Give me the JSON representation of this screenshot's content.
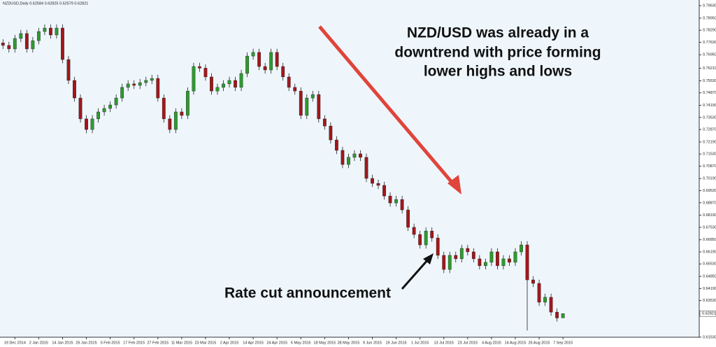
{
  "chart_data": {
    "type": "candlestick",
    "title": "NZDUSD,Daily  0.62584 0.62825 0.62579 0.62821",
    "annotation_top": [
      "NZD/USD was already in a",
      "downtrend with price forming",
      "lower highs and lows"
    ],
    "annotation_bottom": "Rate cut announcement",
    "categories": [
      null,
      null,
      "19 Dec 2014",
      null,
      null,
      null,
      "2 Jan 2015",
      null,
      null,
      null,
      "14 Jan 2015",
      null,
      null,
      null,
      "26 Jan 2015",
      null,
      null,
      null,
      "5 Feb 2015",
      null,
      null,
      null,
      "17 Feb 2015",
      null,
      null,
      null,
      "27 Feb 2015",
      null,
      null,
      null,
      "11 Mar 2015",
      null,
      null,
      null,
      "23 Mar 2015",
      null,
      null,
      null,
      "2 Apr 2015",
      null,
      null,
      null,
      "14 Apr 2015",
      null,
      null,
      null,
      "24 Apr 2015",
      null,
      null,
      null,
      "6 May 2015",
      null,
      null,
      null,
      "18 May 2015",
      null,
      null,
      null,
      "28 May 2015",
      null,
      null,
      null,
      "9 Jun 2015",
      null,
      null,
      null,
      "19 Jun 2015",
      null,
      null,
      null,
      "1 Jul 2015",
      null,
      null,
      null,
      "13 Jul 2015",
      null,
      null,
      null,
      "23 Jul 2015",
      null,
      null,
      null,
      "4 Aug 2015",
      null,
      null,
      null,
      "14 Aug 2015",
      null,
      null,
      null,
      "26 Aug 2015",
      null,
      null,
      null,
      "7 Sep 2015"
    ],
    "open": [
      0.776,
      0.7746,
      0.7727,
      0.7784,
      0.7811,
      0.7727,
      0.7772,
      0.7822,
      0.7841,
      0.7803,
      0.7841,
      0.7669,
      0.7555,
      0.7459,
      0.7345,
      0.7287,
      0.7345,
      0.7383,
      0.7402,
      0.7421,
      0.7459,
      0.7517,
      0.7536,
      0.7528,
      0.7543,
      0.7555,
      0.7566,
      0.7459,
      0.7345,
      0.7287,
      0.7383,
      0.7364,
      0.7497,
      0.7631,
      0.7622,
      0.7574,
      0.7497,
      0.7517,
      0.7536,
      0.7555,
      0.7517,
      0.7593,
      0.7688,
      0.7708,
      0.7631,
      0.7612,
      0.7708,
      0.7631,
      0.7574,
      0.7517,
      0.7497,
      0.7364,
      0.7459,
      0.7478,
      0.7345,
      0.7306,
      0.723,
      0.7173,
      0.7096,
      0.7135,
      0.7154,
      0.7135,
      0.702,
      0.6993,
      0.6982,
      0.6924,
      0.6886,
      0.6905,
      0.6848,
      0.6753,
      0.6714,
      0.6657,
      0.6733,
      0.6695,
      0.66,
      0.6523,
      0.66,
      0.6581,
      0.6638,
      0.6619,
      0.6581,
      0.6543,
      0.6562,
      0.6619,
      0.6543,
      0.6581,
      0.6562,
      0.6619,
      0.6657,
      0.6466,
      0.6447,
      0.6344,
      0.6371,
      0.629,
      0.62584
    ],
    "high": [
      0.778,
      0.7766,
      0.7804,
      0.7831,
      0.7831,
      0.7792,
      0.7842,
      0.7861,
      0.7861,
      0.7861,
      0.7861,
      0.7689,
      0.7575,
      0.7479,
      0.7365,
      0.7365,
      0.7403,
      0.7422,
      0.7441,
      0.7479,
      0.7537,
      0.7556,
      0.7556,
      0.7563,
      0.7575,
      0.7586,
      0.7586,
      0.7479,
      0.7365,
      0.7403,
      0.7403,
      0.7517,
      0.7651,
      0.7651,
      0.7642,
      0.7594,
      0.7537,
      0.7556,
      0.7575,
      0.7575,
      0.7613,
      0.7708,
      0.7728,
      0.7728,
      0.7651,
      0.7728,
      0.7728,
      0.7651,
      0.7594,
      0.7537,
      0.7517,
      0.7479,
      0.7498,
      0.7498,
      0.7365,
      0.7326,
      0.725,
      0.7193,
      0.7155,
      0.7174,
      0.7174,
      0.7155,
      0.704,
      0.7013,
      0.7002,
      0.6944,
      0.6925,
      0.6925,
      0.6868,
      0.6773,
      0.6734,
      0.6753,
      0.6753,
      0.6715,
      0.662,
      0.662,
      0.662,
      0.6658,
      0.6658,
      0.6639,
      0.6601,
      0.6582,
      0.6639,
      0.6639,
      0.6601,
      0.6601,
      0.6639,
      0.6677,
      0.6677,
      0.6486,
      0.6467,
      0.6391,
      0.6391,
      0.631,
      0.62825
    ],
    "low": [
      0.7726,
      0.7707,
      0.7707,
      0.7764,
      0.7707,
      0.7707,
      0.7752,
      0.7802,
      0.7783,
      0.7783,
      0.7649,
      0.7535,
      0.7439,
      0.7325,
      0.7267,
      0.7267,
      0.7325,
      0.7363,
      0.7382,
      0.7401,
      0.7439,
      0.7497,
      0.7508,
      0.7508,
      0.7523,
      0.7535,
      0.7439,
      0.7325,
      0.7267,
      0.7267,
      0.7344,
      0.7344,
      0.7477,
      0.7602,
      0.7554,
      0.7477,
      0.7477,
      0.7497,
      0.7516,
      0.7497,
      0.7497,
      0.7573,
      0.7668,
      0.7611,
      0.7592,
      0.7592,
      0.7611,
      0.7554,
      0.7497,
      0.7477,
      0.7344,
      0.7344,
      0.7439,
      0.7325,
      0.7286,
      0.721,
      0.7153,
      0.7076,
      0.7076,
      0.7115,
      0.7115,
      0.7,
      0.6973,
      0.6962,
      0.6904,
      0.6866,
      0.6866,
      0.6828,
      0.6733,
      0.6694,
      0.6637,
      0.6637,
      0.6675,
      0.658,
      0.6503,
      0.6503,
      0.6561,
      0.6561,
      0.6599,
      0.6561,
      0.6523,
      0.6523,
      0.6542,
      0.6523,
      0.6523,
      0.6542,
      0.6542,
      0.6599,
      0.619,
      0.6427,
      0.6324,
      0.6324,
      0.627,
      0.6238,
      0.62579
    ],
    "close": [
      0.7746,
      0.7727,
      0.7784,
      0.7811,
      0.7727,
      0.7772,
      0.7822,
      0.7841,
      0.7803,
      0.7841,
      0.7669,
      0.7555,
      0.7459,
      0.7345,
      0.7287,
      0.7345,
      0.7383,
      0.7402,
      0.7421,
      0.7459,
      0.7517,
      0.7536,
      0.7528,
      0.7543,
      0.7555,
      0.7566,
      0.7459,
      0.7345,
      0.7287,
      0.7383,
      0.7364,
      0.7497,
      0.7631,
      0.7622,
      0.7574,
      0.7497,
      0.7517,
      0.7536,
      0.7555,
      0.7517,
      0.7593,
      0.7688,
      0.7708,
      0.7631,
      0.7612,
      0.7708,
      0.7631,
      0.7574,
      0.7517,
      0.7497,
      0.7364,
      0.7459,
      0.7478,
      0.7345,
      0.7306,
      0.723,
      0.7173,
      0.7096,
      0.7135,
      0.7154,
      0.7135,
      0.702,
      0.6993,
      0.6982,
      0.6924,
      0.6886,
      0.6905,
      0.6848,
      0.6753,
      0.6714,
      0.6657,
      0.6733,
      0.6695,
      0.66,
      0.6523,
      0.66,
      0.6581,
      0.6638,
      0.6619,
      0.6581,
      0.6543,
      0.6562,
      0.6619,
      0.6543,
      0.6581,
      0.6562,
      0.6619,
      0.6657,
      0.6466,
      0.6447,
      0.6344,
      0.6371,
      0.629,
      0.6258,
      0.62821
    ],
    "up_color": "#2e9a2e",
    "down_color": "#a3161a",
    "last_price": 0.62821,
    "ylim": [
      0.6153,
      0.7994
    ],
    "yticks": [
      {
        "value": 0.7963,
        "label": "0.79630"
      },
      {
        "value": 0.7895,
        "label": "0.78950"
      },
      {
        "value": 0.7829,
        "label": "0.78290"
      },
      {
        "value": 0.7763,
        "label": "0.77630"
      },
      {
        "value": 0.7695,
        "label": "0.76950"
      },
      {
        "value": 0.7621,
        "label": "0.76210"
      },
      {
        "value": 0.7553,
        "label": "0.75530"
      },
      {
        "value": 0.7487,
        "label": "0.74870"
      },
      {
        "value": 0.7419,
        "label": "0.74190"
      },
      {
        "value": 0.7353,
        "label": "0.73530"
      },
      {
        "value": 0.7287,
        "label": "0.72870"
      },
      {
        "value": 0.7219,
        "label": "0.72190"
      },
      {
        "value": 0.7153,
        "label": "0.71530"
      },
      {
        "value": 0.7087,
        "label": "0.70870"
      },
      {
        "value": 0.7019,
        "label": "0.70190"
      },
      {
        "value": 0.6953,
        "label": "0.69530"
      },
      {
        "value": 0.6887,
        "label": "0.68870"
      },
      {
        "value": 0.6819,
        "label": "0.68190"
      },
      {
        "value": 0.6753,
        "label": "0.67530"
      },
      {
        "value": 0.6685,
        "label": "0.66850"
      },
      {
        "value": 0.6619,
        "label": "0.66190"
      },
      {
        "value": 0.6553,
        "label": "0.65530"
      },
      {
        "value": 0.6485,
        "label": "0.64850"
      },
      {
        "value": 0.6419,
        "label": "0.64190"
      },
      {
        "value": 0.6353,
        "label": "0.63530"
      },
      {
        "value": 0.6153,
        "label": "0.61530"
      }
    ]
  }
}
